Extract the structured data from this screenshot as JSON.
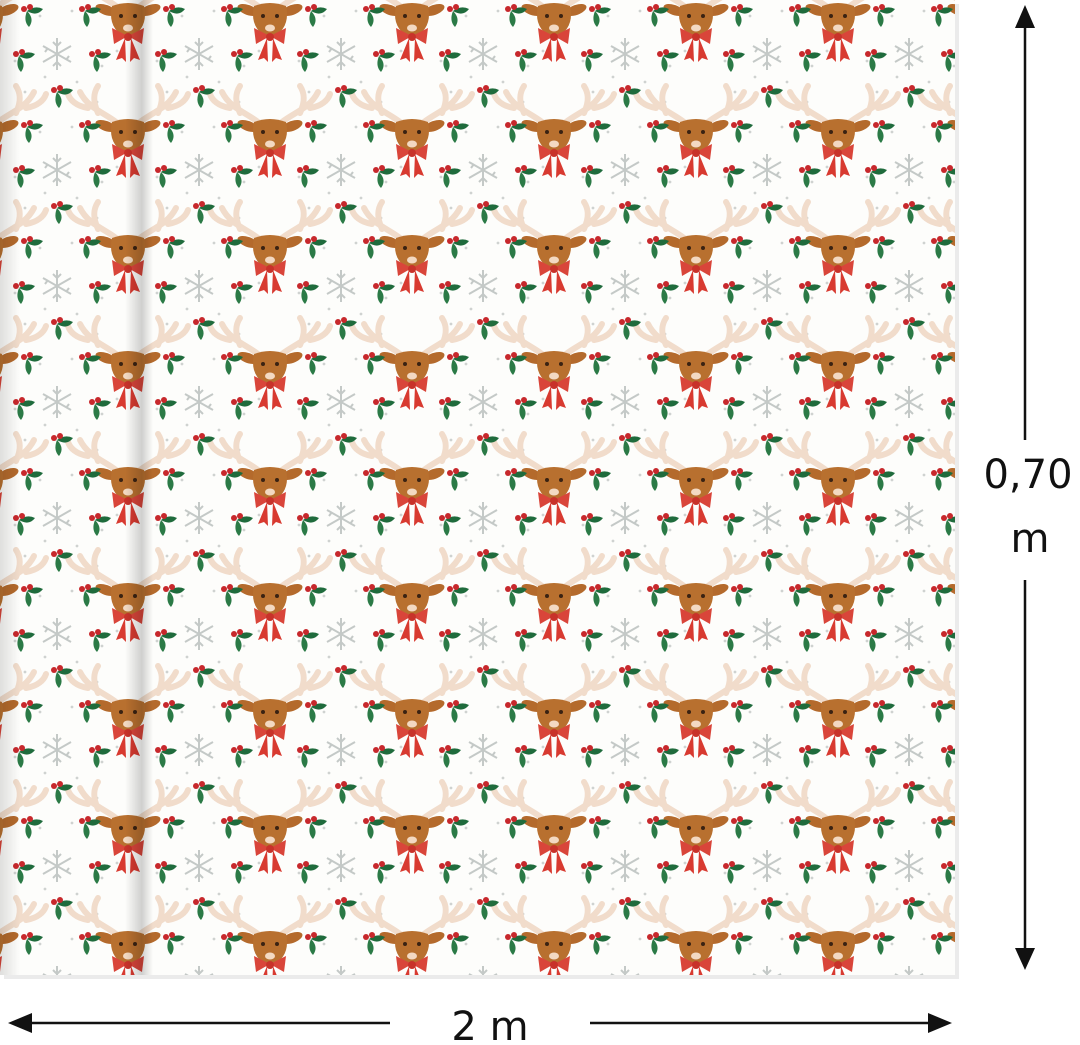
{
  "height_label": {
    "number": "0,70",
    "unit": "m"
  },
  "width_label": "2 m"
}
